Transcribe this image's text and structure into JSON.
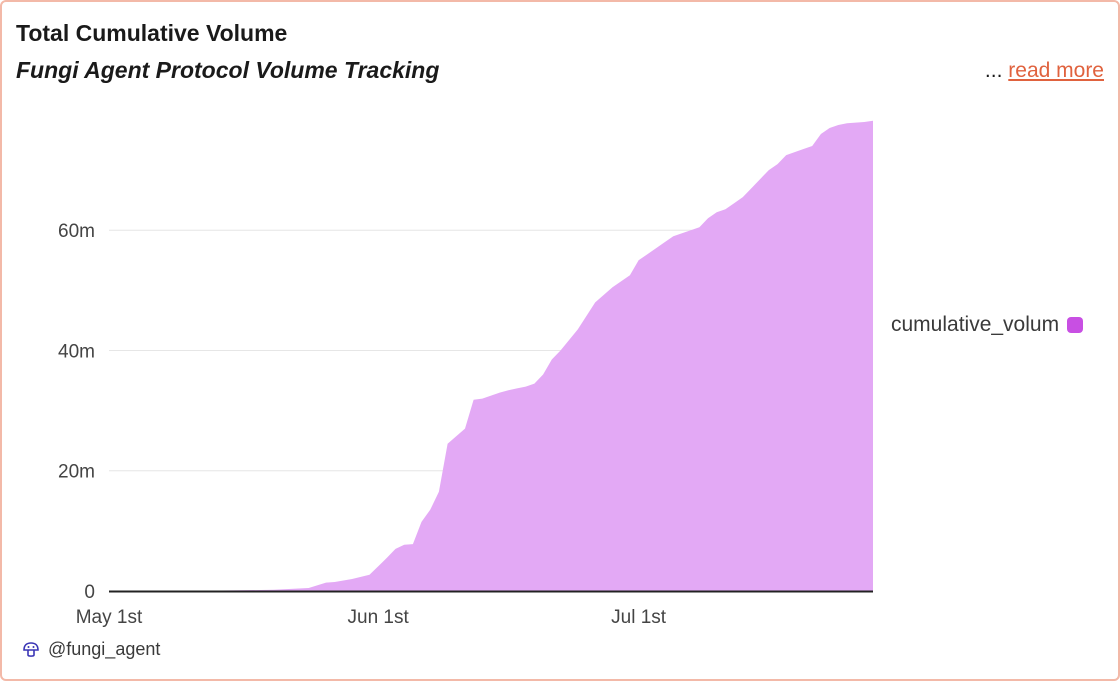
{
  "header": {
    "title": "Total Cumulative Volume",
    "subtitle": "Fungi Agent Protocol Volume Tracking",
    "ellipsis": "...",
    "read_more": "read more"
  },
  "footer": {
    "handle": "@fungi_agent",
    "icon": "mushroom-icon"
  },
  "colors": {
    "area_fill": "#e3a9f5",
    "legend_swatch": "#c84fe3",
    "axis": "#222222",
    "grid": "#e6e6e6",
    "border": "#f3b9a8",
    "link": "#e0623e"
  },
  "chart_data": {
    "type": "area",
    "title": "Total Cumulative Volume",
    "subtitle": "Fungi Agent Protocol Volume Tracking",
    "xlabel": "",
    "ylabel": "",
    "xlim": [
      "2025-05-01",
      "2025-07-28"
    ],
    "ylim": [
      0,
      77000000
    ],
    "x_ticks": [
      {
        "date": "2025-05-01",
        "label": "May 1st"
      },
      {
        "date": "2025-06-01",
        "label": "Jun 1st"
      },
      {
        "date": "2025-07-01",
        "label": "Jul 1st"
      }
    ],
    "y_ticks": [
      {
        "value": 0,
        "label": "0"
      },
      {
        "value": 20000000,
        "label": "20m"
      },
      {
        "value": 40000000,
        "label": "40m"
      },
      {
        "value": 60000000,
        "label": "60m"
      }
    ],
    "grid": true,
    "legend_position": "right",
    "series": [
      {
        "name": "cumulative_volum",
        "x": [
          "2025-05-01",
          "2025-05-10",
          "2025-05-20",
          "2025-05-24",
          "2025-05-26",
          "2025-05-27",
          "2025-05-29",
          "2025-05-31",
          "2025-06-02",
          "2025-06-03",
          "2025-06-04",
          "2025-06-05",
          "2025-06-06",
          "2025-06-07",
          "2025-06-08",
          "2025-06-09",
          "2025-06-11",
          "2025-06-12",
          "2025-06-13",
          "2025-06-14",
          "2025-06-15",
          "2025-06-16",
          "2025-06-17",
          "2025-06-18",
          "2025-06-19",
          "2025-06-20",
          "2025-06-21",
          "2025-06-22",
          "2025-06-24",
          "2025-06-26",
          "2025-06-28",
          "2025-06-30",
          "2025-07-01",
          "2025-07-03",
          "2025-07-04",
          "2025-07-05",
          "2025-07-06",
          "2025-07-08",
          "2025-07-09",
          "2025-07-10",
          "2025-07-11",
          "2025-07-12",
          "2025-07-13",
          "2025-07-14",
          "2025-07-16",
          "2025-07-17",
          "2025-07-18",
          "2025-07-20",
          "2025-07-21",
          "2025-07-22",
          "2025-07-23",
          "2025-07-24",
          "2025-07-25",
          "2025-07-27",
          "2025-07-28"
        ],
        "values": [
          0,
          0,
          200000,
          500000,
          1400000,
          1500000,
          2000000,
          2700000,
          5500000,
          7000000,
          7700000,
          7800000,
          11500000,
          13500000,
          16500000,
          24500000,
          27000000,
          31800000,
          32000000,
          32500000,
          33000000,
          33400000,
          33700000,
          34000000,
          34500000,
          36000000,
          38500000,
          40000000,
          43500000,
          48000000,
          50500000,
          52500000,
          55000000,
          57000000,
          58000000,
          59000000,
          59500000,
          60500000,
          62000000,
          63000000,
          63500000,
          64500000,
          65500000,
          67000000,
          70000000,
          71000000,
          72500000,
          73500000,
          74000000,
          76000000,
          77000000,
          77500000,
          77800000,
          78000000,
          78200000
        ]
      }
    ]
  }
}
